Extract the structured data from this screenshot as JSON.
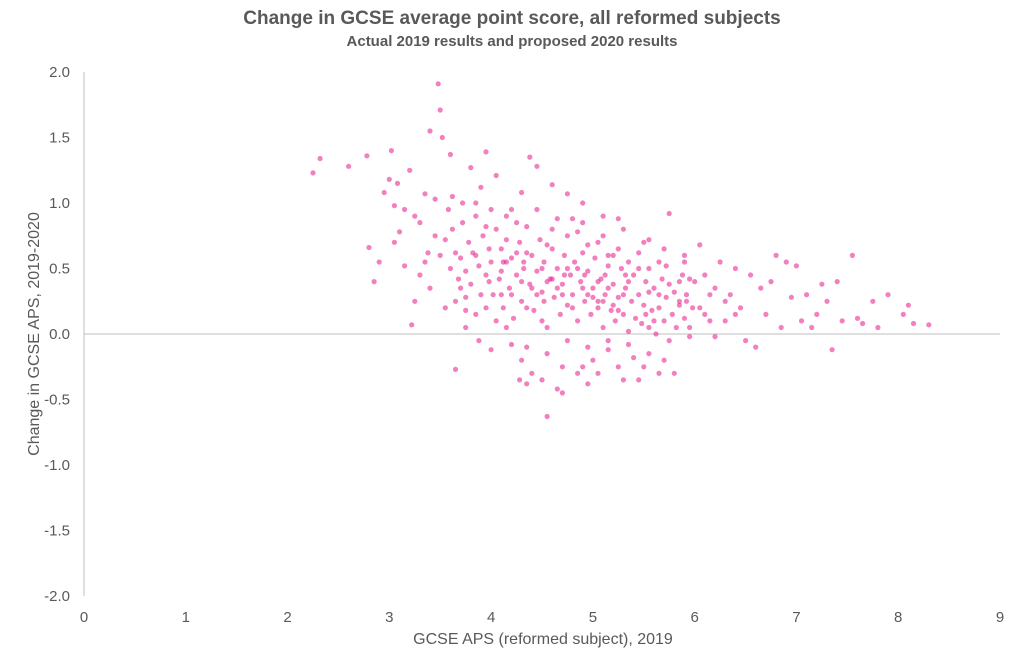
{
  "chart_data": {
    "type": "scatter",
    "title": "Change in GCSE average point score, all reformed subjects",
    "subtitle": "Actual 2019 results and proposed 2020 results",
    "xlabel": "GCSE APS (reformed subject), 2019",
    "ylabel": "Change in GCSE APS, 2019-2020",
    "xlim": [
      0,
      9
    ],
    "ylim": [
      -2.0,
      2.0
    ],
    "x_ticks": [
      "0",
      "1",
      "2",
      "3",
      "4",
      "5",
      "6",
      "7",
      "8",
      "9"
    ],
    "y_ticks": [
      "2.0",
      "1.5",
      "1.0",
      "0.5",
      "0.0",
      "-0.5",
      "-1.0",
      "-1.5",
      "-2.0"
    ],
    "grid": false,
    "legend": "none",
    "color": "#e8178a",
    "points": [
      [
        2.25,
        1.23
      ],
      [
        2.32,
        1.34
      ],
      [
        2.6,
        1.28
      ],
      [
        2.78,
        1.36
      ],
      [
        2.8,
        0.66
      ],
      [
        2.85,
        0.4
      ],
      [
        2.9,
        0.55
      ],
      [
        2.95,
        1.08
      ],
      [
        3.0,
        1.18
      ],
      [
        3.02,
        1.4
      ],
      [
        3.05,
        0.98
      ],
      [
        3.08,
        1.15
      ],
      [
        3.1,
        0.78
      ],
      [
        3.15,
        0.52
      ],
      [
        3.2,
        1.25
      ],
      [
        3.22,
        0.07
      ],
      [
        3.25,
        0.9
      ],
      [
        3.3,
        0.45
      ],
      [
        3.35,
        1.07
      ],
      [
        3.38,
        0.62
      ],
      [
        3.4,
        1.55
      ],
      [
        3.45,
        1.03
      ],
      [
        3.48,
        1.91
      ],
      [
        3.5,
        1.71
      ],
      [
        3.52,
        1.5
      ],
      [
        3.55,
        0.2
      ],
      [
        3.6,
        1.37
      ],
      [
        3.62,
        0.8
      ],
      [
        3.65,
        -0.27
      ],
      [
        3.7,
        0.35
      ],
      [
        3.72,
        1.0
      ],
      [
        3.75,
        0.18
      ],
      [
        3.8,
        1.27
      ],
      [
        3.85,
        0.6
      ],
      [
        3.88,
        -0.05
      ],
      [
        3.9,
        1.12
      ],
      [
        3.95,
        1.39
      ],
      [
        3.98,
        0.4
      ],
      [
        4.0,
        -0.12
      ],
      [
        4.05,
        1.21
      ],
      [
        4.1,
        0.3
      ],
      [
        4.15,
        0.55
      ],
      [
        4.2,
        -0.08
      ],
      [
        4.25,
        0.85
      ],
      [
        4.28,
        -0.35
      ],
      [
        4.3,
        1.08
      ],
      [
        4.35,
        -0.38
      ],
      [
        4.38,
        1.35
      ],
      [
        4.4,
        -0.3
      ],
      [
        4.45,
        1.28
      ],
      [
        4.5,
        0.1
      ],
      [
        4.55,
        -0.63
      ],
      [
        4.6,
        1.14
      ],
      [
        4.65,
        -0.42
      ],
      [
        4.7,
        -0.25
      ],
      [
        4.75,
        1.07
      ],
      [
        4.8,
        0.88
      ],
      [
        4.85,
        -0.3
      ],
      [
        4.9,
        1.0
      ],
      [
        4.95,
        -0.38
      ],
      [
        5.0,
        -0.2
      ],
      [
        5.05,
        0.25
      ],
      [
        5.1,
        0.9
      ],
      [
        5.15,
        -0.05
      ],
      [
        5.2,
        0.6
      ],
      [
        5.25,
        0.88
      ],
      [
        5.3,
        -0.35
      ],
      [
        5.35,
        0.4
      ],
      [
        5.4,
        -0.18
      ],
      [
        5.45,
        0.5
      ],
      [
        5.5,
        -0.25
      ],
      [
        5.55,
        0.72
      ],
      [
        5.6,
        0.1
      ],
      [
        5.65,
        0.3
      ],
      [
        5.7,
        -0.2
      ],
      [
        5.75,
        0.92
      ],
      [
        5.8,
        -0.3
      ],
      [
        5.85,
        0.25
      ],
      [
        5.9,
        0.6
      ],
      [
        5.95,
        0.05
      ],
      [
        6.0,
        0.4
      ],
      [
        6.05,
        0.68
      ],
      [
        6.1,
        0.15
      ],
      [
        6.15,
        0.3
      ],
      [
        6.2,
        -0.02
      ],
      [
        6.3,
        0.1
      ],
      [
        6.35,
        0.3
      ],
      [
        6.4,
        0.5
      ],
      [
        6.5,
        -0.05
      ],
      [
        6.55,
        0.45
      ],
      [
        6.6,
        -0.1
      ],
      [
        6.65,
        0.35
      ],
      [
        6.7,
        0.15
      ],
      [
        6.8,
        0.6
      ],
      [
        6.85,
        0.05
      ],
      [
        6.9,
        0.55
      ],
      [
        6.95,
        0.28
      ],
      [
        7.0,
        0.52
      ],
      [
        7.05,
        0.1
      ],
      [
        7.1,
        0.3
      ],
      [
        7.2,
        0.15
      ],
      [
        7.25,
        0.38
      ],
      [
        7.3,
        0.25
      ],
      [
        7.35,
        -0.12
      ],
      [
        7.4,
        0.4
      ],
      [
        7.45,
        0.1
      ],
      [
        7.55,
        0.6
      ],
      [
        7.6,
        0.12
      ],
      [
        7.65,
        0.08
      ],
      [
        7.75,
        0.25
      ],
      [
        7.8,
        0.05
      ],
      [
        7.9,
        0.3
      ],
      [
        8.1,
        0.22
      ],
      [
        8.15,
        0.08
      ],
      [
        8.3,
        0.07
      ],
      [
        8.05,
        0.15
      ],
      [
        7.15,
        0.05
      ],
      [
        6.25,
        0.55
      ],
      [
        6.45,
        0.2
      ],
      [
        6.75,
        0.4
      ],
      [
        3.55,
        0.72
      ],
      [
        3.6,
        0.5
      ],
      [
        3.65,
        0.62
      ],
      [
        3.68,
        0.42
      ],
      [
        3.7,
        0.58
      ],
      [
        3.72,
        0.85
      ],
      [
        3.75,
        0.48
      ],
      [
        3.78,
        0.7
      ],
      [
        3.8,
        0.38
      ],
      [
        3.82,
        0.62
      ],
      [
        3.85,
        0.9
      ],
      [
        3.88,
        0.52
      ],
      [
        3.9,
        0.3
      ],
      [
        3.92,
        0.75
      ],
      [
        3.95,
        0.45
      ],
      [
        3.98,
        0.65
      ],
      [
        4.0,
        0.55
      ],
      [
        4.02,
        0.3
      ],
      [
        4.05,
        0.8
      ],
      [
        4.08,
        0.42
      ],
      [
        4.1,
        0.65
      ],
      [
        4.12,
        0.2
      ],
      [
        4.15,
        0.9
      ],
      [
        4.18,
        0.35
      ],
      [
        4.2,
        0.58
      ],
      [
        4.22,
        0.12
      ],
      [
        4.25,
        0.45
      ],
      [
        4.28,
        0.7
      ],
      [
        4.3,
        0.25
      ],
      [
        4.32,
        0.55
      ],
      [
        4.35,
        0.82
      ],
      [
        4.38,
        0.38
      ],
      [
        4.4,
        0.6
      ],
      [
        4.42,
        0.18
      ],
      [
        4.45,
        0.48
      ],
      [
        4.48,
        0.72
      ],
      [
        4.5,
        0.32
      ],
      [
        4.52,
        0.55
      ],
      [
        4.55,
        0.05
      ],
      [
        4.58,
        0.42
      ],
      [
        4.6,
        0.65
      ],
      [
        4.62,
        0.28
      ],
      [
        4.65,
        0.5
      ],
      [
        4.68,
        0.15
      ],
      [
        4.7,
        0.38
      ],
      [
        4.72,
        0.6
      ],
      [
        4.75,
        0.22
      ],
      [
        4.78,
        0.45
      ],
      [
        4.8,
        0.3
      ],
      [
        4.82,
        0.55
      ],
      [
        4.85,
        0.1
      ],
      [
        4.88,
        0.4
      ],
      [
        4.9,
        0.62
      ],
      [
        4.92,
        0.25
      ],
      [
        4.95,
        0.48
      ],
      [
        4.98,
        0.15
      ],
      [
        5.0,
        0.35
      ],
      [
        5.02,
        0.58
      ],
      [
        5.05,
        0.2
      ],
      [
        5.08,
        0.42
      ],
      [
        5.1,
        0.05
      ],
      [
        5.12,
        0.3
      ],
      [
        5.15,
        0.52
      ],
      [
        5.18,
        0.18
      ],
      [
        5.2,
        0.38
      ],
      [
        5.22,
        0.1
      ],
      [
        5.25,
        0.28
      ],
      [
        5.28,
        0.5
      ],
      [
        5.3,
        0.15
      ],
      [
        5.32,
        0.35
      ],
      [
        5.35,
        0.02
      ],
      [
        5.38,
        0.25
      ],
      [
        5.4,
        0.45
      ],
      [
        5.42,
        0.12
      ],
      [
        5.45,
        0.3
      ],
      [
        5.48,
        0.08
      ],
      [
        5.5,
        0.22
      ],
      [
        5.52,
        0.4
      ],
      [
        5.55,
        0.05
      ],
      [
        5.58,
        0.18
      ],
      [
        5.6,
        0.35
      ],
      [
        5.62,
        0.0
      ],
      [
        5.65,
        0.2
      ],
      [
        5.68,
        0.42
      ],
      [
        5.7,
        0.1
      ],
      [
        5.72,
        0.28
      ],
      [
        5.75,
        -0.05
      ],
      [
        5.78,
        0.15
      ],
      [
        5.8,
        0.32
      ],
      [
        5.82,
        0.05
      ],
      [
        5.85,
        0.22
      ],
      [
        5.88,
        0.45
      ],
      [
        5.9,
        0.12
      ],
      [
        5.92,
        0.3
      ],
      [
        5.95,
        -0.02
      ],
      [
        5.98,
        0.2
      ],
      [
        4.1,
        0.48
      ],
      [
        4.3,
        0.4
      ],
      [
        4.5,
        0.5
      ],
      [
        4.7,
        0.3
      ],
      [
        4.9,
        0.35
      ],
      [
        5.1,
        0.25
      ],
      [
        5.3,
        0.3
      ],
      [
        4.2,
        0.3
      ],
      [
        4.4,
        0.35
      ],
      [
        4.6,
        0.42
      ],
      [
        4.8,
        0.2
      ],
      [
        5.0,
        0.28
      ],
      [
        5.2,
        0.22
      ],
      [
        4.25,
        0.62
      ],
      [
        4.45,
        0.3
      ],
      [
        4.65,
        0.35
      ],
      [
        4.85,
        0.5
      ],
      [
        5.05,
        0.4
      ],
      [
        5.25,
        0.18
      ],
      [
        4.35,
        0.2
      ],
      [
        4.55,
        0.4
      ],
      [
        4.75,
        0.5
      ],
      [
        4.95,
        0.3
      ],
      [
        5.15,
        0.35
      ],
      [
        3.95,
        0.2
      ],
      [
        4.05,
        0.1
      ],
      [
        4.15,
        0.05
      ],
      [
        4.35,
        -0.1
      ],
      [
        4.55,
        -0.15
      ],
      [
        4.75,
        -0.05
      ],
      [
        4.95,
        -0.1
      ],
      [
        5.15,
        -0.12
      ],
      [
        5.35,
        -0.08
      ],
      [
        5.55,
        -0.15
      ],
      [
        3.85,
        0.15
      ],
      [
        3.75,
        0.05
      ],
      [
        3.65,
        0.25
      ],
      [
        4.45,
        0.95
      ],
      [
        4.65,
        0.88
      ],
      [
        4.85,
        0.78
      ],
      [
        5.05,
        0.7
      ],
      [
        5.25,
        0.65
      ],
      [
        5.45,
        0.62
      ],
      [
        3.5,
        0.6
      ],
      [
        3.4,
        0.35
      ],
      [
        3.3,
        0.85
      ],
      [
        3.45,
        0.75
      ],
      [
        3.35,
        0.55
      ],
      [
        3.25,
        0.25
      ],
      [
        3.15,
        0.95
      ],
      [
        3.05,
        0.7
      ],
      [
        3.58,
        0.95
      ],
      [
        3.62,
        1.05
      ],
      [
        3.85,
        1.0
      ],
      [
        4.0,
        0.95
      ],
      [
        4.2,
        0.95
      ],
      [
        4.6,
        0.8
      ],
      [
        4.9,
        0.85
      ],
      [
        5.1,
        0.75
      ],
      [
        5.3,
        0.8
      ],
      [
        5.5,
        0.7
      ],
      [
        5.7,
        0.65
      ],
      [
        5.9,
        0.55
      ],
      [
        6.1,
        0.45
      ],
      [
        6.2,
        0.35
      ],
      [
        6.3,
        0.25
      ],
      [
        6.4,
        0.15
      ],
      [
        6.05,
        0.2
      ],
      [
        6.15,
        0.1
      ],
      [
        5.65,
        0.55
      ],
      [
        5.85,
        0.4
      ],
      [
        5.55,
        0.5
      ],
      [
        4.5,
        -0.35
      ],
      [
        4.3,
        -0.2
      ],
      [
        4.7,
        -0.45
      ],
      [
        5.05,
        -0.3
      ],
      [
        5.25,
        -0.25
      ],
      [
        4.9,
        -0.25
      ],
      [
        5.45,
        -0.35
      ],
      [
        5.65,
        -0.3
      ],
      [
        3.75,
        0.28
      ],
      [
        3.95,
        0.82
      ],
      [
        4.15,
        0.72
      ],
      [
        4.35,
        0.62
      ],
      [
        4.55,
        0.68
      ],
      [
        4.75,
        0.75
      ],
      [
        4.95,
        0.68
      ],
      [
        5.15,
        0.6
      ],
      [
        5.35,
        0.55
      ],
      [
        5.55,
        0.32
      ],
      [
        5.75,
        0.38
      ],
      [
        5.95,
        0.42
      ],
      [
        4.12,
        0.55
      ],
      [
        4.32,
        0.5
      ],
      [
        4.52,
        0.25
      ],
      [
        4.72,
        0.45
      ],
      [
        4.92,
        0.45
      ],
      [
        5.12,
        0.45
      ],
      [
        5.32,
        0.45
      ],
      [
        5.52,
        0.15
      ],
      [
        5.72,
        0.52
      ],
      [
        5.92,
        0.25
      ]
    ]
  }
}
